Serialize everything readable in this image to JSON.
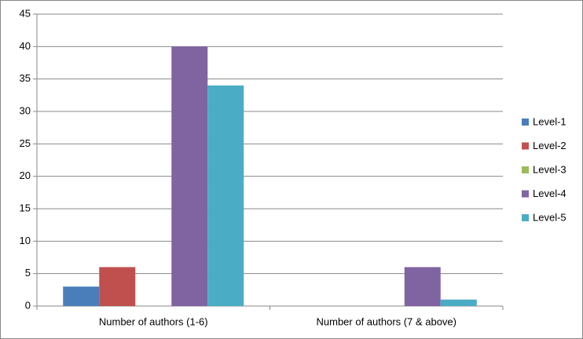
{
  "chart_data": {
    "type": "bar",
    "categories": [
      "Number of authors (1-6)",
      "Number of authors (7 & above)"
    ],
    "series": [
      {
        "name": "Level-1",
        "color": "#4a7ebb",
        "values": [
          3,
          0
        ]
      },
      {
        "name": "Level-2",
        "color": "#c0504d",
        "values": [
          6,
          0
        ]
      },
      {
        "name": "Level-3",
        "color": "#9bbb59",
        "values": [
          0,
          0
        ]
      },
      {
        "name": "Level-4",
        "color": "#8064a2",
        "values": [
          40,
          6
        ]
      },
      {
        "name": "Level-5",
        "color": "#4bacc6",
        "values": [
          34,
          1
        ]
      }
    ],
    "ylim": [
      0,
      45
    ],
    "yticks": [
      0,
      5,
      10,
      15,
      20,
      25,
      30,
      35,
      40,
      45
    ],
    "grid": true,
    "legend": "right"
  }
}
